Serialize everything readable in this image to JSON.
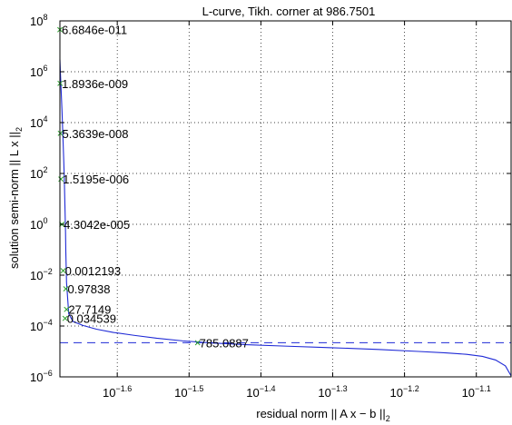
{
  "chart_data": {
    "type": "line",
    "title": "L-curve, Tikh. corner at 986.7501",
    "xlabel": {
      "main": "residual norm || A x − b ||",
      "sub": "2"
    },
    "ylabel": {
      "main": "solution semi-norm || L x ||",
      "sub": "2"
    },
    "xscale": "log",
    "yscale": "log",
    "xlim": [
      0.0209,
      0.0888
    ],
    "ylim": [
      1e-06,
      100000000.0
    ],
    "grid": true,
    "x_ticks": [
      {
        "base": "10",
        "exp": "−1.6",
        "value": 0.025119
      },
      {
        "base": "10",
        "exp": "−1.5",
        "value": 0.031623
      },
      {
        "base": "10",
        "exp": "−1.4",
        "value": 0.039811
      },
      {
        "base": "10",
        "exp": "−1.3",
        "value": 0.050119
      },
      {
        "base": "10",
        "exp": "−1.2",
        "value": 0.063096
      },
      {
        "base": "10",
        "exp": "−1.1",
        "value": 0.079433
      }
    ],
    "y_ticks": [
      {
        "base": "10",
        "exp": "−6",
        "value": 1e-06
      },
      {
        "base": "10",
        "exp": "−4",
        "value": 0.0001
      },
      {
        "base": "10",
        "exp": "−2",
        "value": 0.01
      },
      {
        "base": "10",
        "exp": "0",
        "value": 1
      },
      {
        "base": "10",
        "exp": "2",
        "value": 100.0
      },
      {
        "base": "10",
        "exp": "4",
        "value": 10000.0
      },
      {
        "base": "10",
        "exp": "6",
        "value": 1000000.0
      },
      {
        "base": "10",
        "exp": "8",
        "value": 100000000.0
      }
    ],
    "curve": {
      "x": [
        0.0209,
        0.02093,
        0.02098,
        0.02104,
        0.0211,
        0.02116,
        0.0212,
        0.02124,
        0.02128,
        0.0213,
        0.02135,
        0.0215,
        0.0218,
        0.0225,
        0.0235,
        0.0248,
        0.0265,
        0.0285,
        0.031,
        0.034,
        0.038,
        0.043,
        0.05,
        0.058,
        0.066,
        0.072,
        0.077,
        0.081,
        0.0845,
        0.0872,
        0.0888
      ],
      "y": [
        3000000.0,
        1000000.0,
        200000.0,
        30000.0,
        3000.0,
        300,
        50,
        5,
        0.5,
        0.08,
        0.005,
        0.0003,
        0.00015,
        0.000105,
        7.5e-05,
        5.6e-05,
        4.3e-05,
        3.3e-05,
        2.6e-05,
        2.15e-05,
        1.85e-05,
        1.62e-05,
        1.4e-05,
        1.2e-05,
        1e-05,
        8.8e-06,
        7.7e-06,
        6.4e-06,
        4.6e-06,
        2.7e-06,
        1.1e-06
      ]
    },
    "markers": [
      {
        "label": "6.6846e-011",
        "x": 0.0209,
        "y": 45000000.0
      },
      {
        "label": "1.8936e-009",
        "x": 0.02091,
        "y": 350000.0
      },
      {
        "label": "5.3639e-008",
        "x": 0.02093,
        "y": 3800.0
      },
      {
        "label": "1.5195e-006",
        "x": 0.02097,
        "y": 60
      },
      {
        "label": "4.3042e-005",
        "x": 0.02103,
        "y": 1.0
      },
      {
        "label": "0.0012193",
        "x": 0.02112,
        "y": 0.015
      },
      {
        "label": "0.034539",
        "x": 0.02125,
        "y": 0.0002
      },
      {
        "label": "0.97838",
        "x": 0.0213,
        "y": 0.0029
      },
      {
        "label": "27.7149",
        "x": 0.02135,
        "y": 0.00045
      },
      {
        "label": "785.0887",
        "x": 0.0325,
        "y": 2.2e-05
      }
    ],
    "corner_line": {
      "y": 2.2e-05,
      "style": "dashed"
    },
    "colors": {
      "curve": "#1f2ad6",
      "marker": "#2ca02c",
      "grid": "#000000",
      "axes": "#000000"
    }
  }
}
